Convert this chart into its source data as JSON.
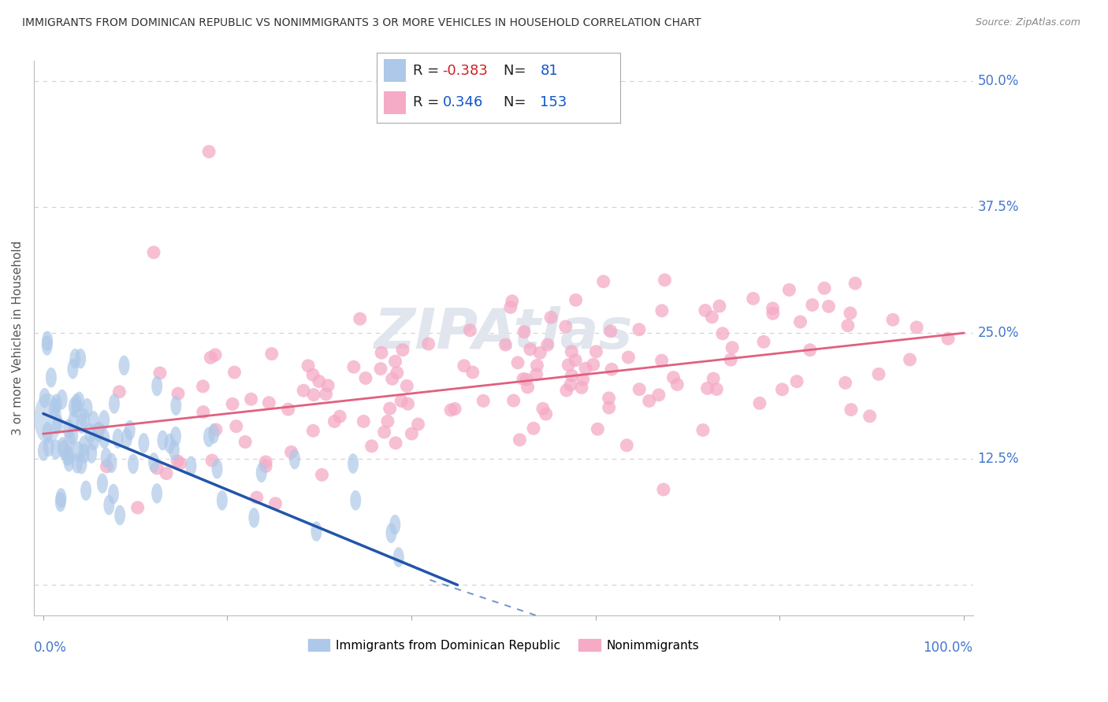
{
  "title": "IMMIGRANTS FROM DOMINICAN REPUBLIC VS NONIMMIGRANTS 3 OR MORE VEHICLES IN HOUSEHOLD CORRELATION CHART",
  "source": "Source: ZipAtlas.com",
  "legend_label_blue": "Immigrants from Dominican Republic",
  "legend_label_pink": "Nonimmigrants",
  "R_blue": -0.383,
  "N_blue": 81,
  "R_pink": 0.346,
  "N_pink": 153,
  "blue_color": "#adc8e8",
  "pink_color": "#f5aac5",
  "blue_line_color": "#2255aa",
  "pink_line_color": "#e06080",
  "background_color": "#ffffff",
  "grid_color": "#cccccc",
  "axis_label_color": "#4477cc",
  "title_color": "#333333",
  "watermark_color": "#e0e5ee",
  "right_label_color": "#4477cc",
  "legend_text_color": "#1a3a8a",
  "legend_R_color": "#cc2222",
  "legend_N_color": "#1155cc"
}
